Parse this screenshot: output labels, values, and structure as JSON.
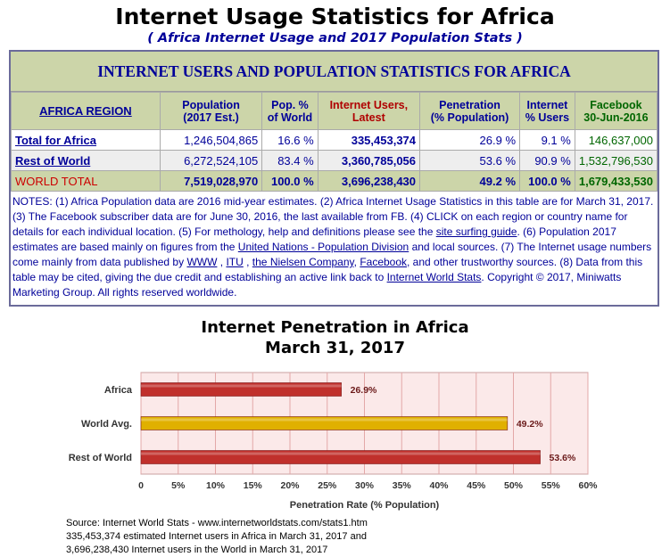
{
  "header": {
    "title": "Internet Usage Statistics for Africa",
    "subtitle": "( Africa Internet Usage and 2017 Population Stats )"
  },
  "stats_box": {
    "heading": "INTERNET USERS AND POPULATION STATISTICS FOR AFRICA",
    "columns": {
      "region": "AFRICA REGION",
      "population_l1": "Population",
      "population_l2": "(2017 Est.)",
      "pop_pct_l1": "Pop. %",
      "pop_pct_l2": "of World",
      "users_l1": "Internet Users,",
      "users_l2": "Latest",
      "penetration_l1": "Penetration",
      "penetration_l2": "(% Population)",
      "internet_pct_l1": "Internet",
      "internet_pct_l2": "% Users",
      "facebook_l1": "Facebook",
      "facebook_l2": "30-Jun-2016"
    },
    "rows": [
      {
        "region": "Total for Africa",
        "population": "1,246,504,865",
        "pop_pct": "16.6 %",
        "users": "335,453,374",
        "penetration": "26.9 %",
        "internet_pct": "9.1 %",
        "facebook": "146,637,000"
      },
      {
        "region": "Rest of World",
        "population": "6,272,524,105",
        "pop_pct": "83.4 %",
        "users": "3,360,785,056",
        "penetration": "53.6 %",
        "internet_pct": "90.9 %",
        "facebook": "1,532,796,530"
      },
      {
        "region": "WORLD TOTAL",
        "population": "7,519,028,970",
        "pop_pct": "100.0 %",
        "users": "3,696,238,430",
        "penetration": "49.2 %",
        "internet_pct": "100.0 %",
        "facebook": "1,679,433,530"
      }
    ],
    "notes": {
      "t1": "NOTES: (1) Africa Population data are 2016 mid-year estimates. (2) Africa Internet Usage Statistics in this table are for March 31, 2017. (3) The Facebook subscriber data are for June 30, 2016, the last available from FB. (4) CLICK on each region or country name for details for each individual location. (5) For methology, help and definitions please see the ",
      "l1": "site surfing guide",
      "t2": ". (6) Population 2017 estimates are based mainly on figures from the ",
      "l2": "United Nations - Population Division",
      "t3": " and local sources. (7) The Internet usage numbers come mainly from data published by ",
      "l3": "WWW",
      "t4": " , ",
      "l4": "ITU",
      "t5": " , ",
      "l5": "the Nielsen Company",
      "t6": ", ",
      "l6": "Facebook",
      "t7": ", and other trustworthy sources. (8) Data from this table may be cited, giving the due credit and establishing an active link back to ",
      "l7": "Internet World Stats",
      "t8": ". Copyright © 2017, Miniwatts Marketing Group. All rights reserved worldwide."
    }
  },
  "chart_data": {
    "type": "bar",
    "orientation": "horizontal",
    "title": "Internet Penetration in Africa",
    "subtitle": "March 31, 2017",
    "categories": [
      "Africa",
      "World Avg.",
      "Rest of World"
    ],
    "values": [
      26.9,
      49.2,
      53.6
    ],
    "value_labels": [
      "26.9%",
      "49.2%",
      "53.6%"
    ],
    "bar_colors": [
      "#c0302c",
      "#e0b000",
      "#c0302c"
    ],
    "xlabel": "Penetration Rate (% Population)",
    "ylabel": "",
    "xlim": [
      0,
      60
    ],
    "x_ticks": [
      "0",
      "5%",
      "10%",
      "15%",
      "20%",
      "25%",
      "30%",
      "35%",
      "40%",
      "45%",
      "50%",
      "55%",
      "60%"
    ],
    "grid": true,
    "plot_background": "#fbe9e9",
    "gridline_color": "#e3a8a8"
  },
  "source": {
    "line1": "Source: Internet World Stats  -  www.internetworldstats.com/stats1.htm",
    "line2": "335,453,374 estimated Internet users in Africa in March 31,  2017 and",
    "line3": "3,696,238,430 Internet users in the World in March 31, 2017"
  }
}
